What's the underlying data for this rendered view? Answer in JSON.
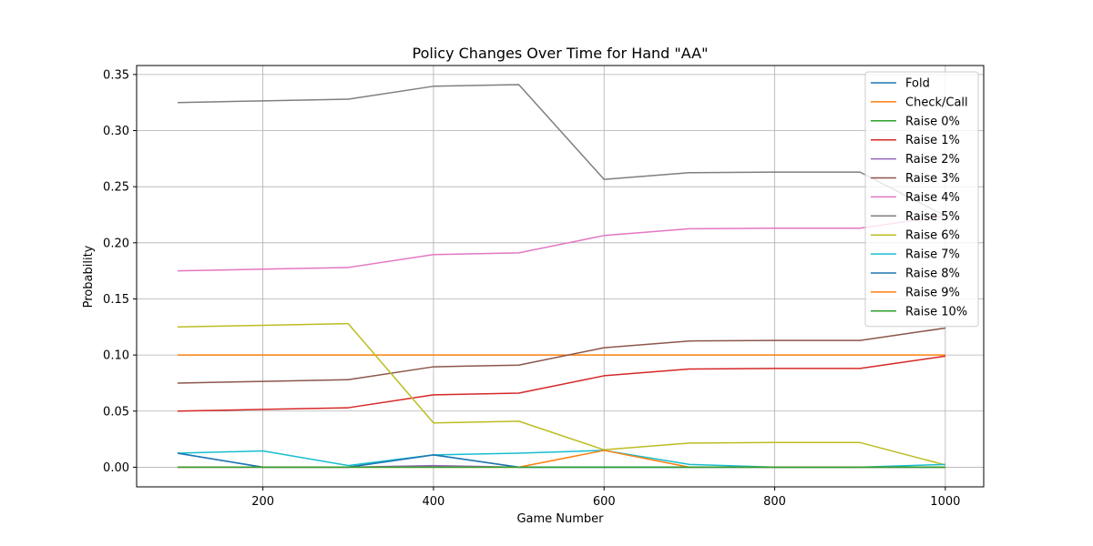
{
  "chart_data": {
    "type": "line",
    "title": "Policy Changes Over Time for Hand \"AA\"",
    "xlabel": "Game Number",
    "ylabel": "Probability",
    "xlim": [
      52,
      1045
    ],
    "ylim": [
      -0.0175,
      0.358
    ],
    "x": [
      100,
      200,
      300,
      400,
      500,
      600,
      700,
      800,
      900,
      1000
    ],
    "xticks": [
      200,
      400,
      600,
      800,
      1000
    ],
    "yticks": [
      0.0,
      0.05,
      0.1,
      0.15,
      0.2,
      0.25,
      0.3,
      0.35
    ],
    "xtick_labels": [
      "200",
      "400",
      "600",
      "800",
      "1000"
    ],
    "ytick_labels": [
      "0.00",
      "0.05",
      "0.10",
      "0.15",
      "0.20",
      "0.25",
      "0.30",
      "0.35"
    ],
    "grid": true,
    "legend_position": "top-right",
    "series": [
      {
        "name": "Fold",
        "color": "#1f77b4",
        "values": [
          0.0125,
          0.0,
          0.0,
          0.011,
          0.0,
          0.0,
          0.0,
          0.0,
          0.0,
          0.0
        ]
      },
      {
        "name": "Check/Call",
        "color": "#ff7f0e",
        "values": [
          0.1,
          0.1,
          0.1,
          0.1,
          0.1,
          0.1,
          0.1,
          0.1,
          0.1,
          0.1
        ]
      },
      {
        "name": "Raise 0%",
        "color": "#2ca02c",
        "values": [
          0.0,
          0.0,
          0.0,
          0.0,
          0.0,
          0.0,
          0.0,
          0.0,
          0.0,
          0.0
        ]
      },
      {
        "name": "Raise 1%",
        "color": "#d62728",
        "values": [
          0.05,
          0.0515,
          0.053,
          0.0645,
          0.066,
          0.0815,
          0.0875,
          0.088,
          0.088,
          0.099
        ]
      },
      {
        "name": "Raise 2%",
        "color": "#9467bd",
        "values": [
          0.0,
          0.0,
          0.0,
          0.0015,
          0.0,
          0.0,
          0.0,
          0.0,
          0.0,
          0.0
        ]
      },
      {
        "name": "Raise 3%",
        "color": "#8c564b",
        "values": [
          0.075,
          0.0765,
          0.078,
          0.0895,
          0.091,
          0.1065,
          0.1125,
          0.113,
          0.113,
          0.124
        ]
      },
      {
        "name": "Raise 4%",
        "color": "#e377c2",
        "values": [
          0.175,
          0.1765,
          0.178,
          0.1895,
          0.191,
          0.2065,
          0.2125,
          0.213,
          0.213,
          0.224
        ]
      },
      {
        "name": "Raise 5%",
        "color": "#7f7f7f",
        "values": [
          0.325,
          0.3265,
          0.328,
          0.3395,
          0.341,
          0.2565,
          0.2625,
          0.263,
          0.263,
          0.224
        ]
      },
      {
        "name": "Raise 6%",
        "color": "#bcbd22",
        "values": [
          0.125,
          0.1265,
          0.128,
          0.0395,
          0.041,
          0.0155,
          0.0215,
          0.022,
          0.022,
          0.002
        ]
      },
      {
        "name": "Raise 7%",
        "color": "#17becf",
        "values": [
          0.0125,
          0.0145,
          0.0015,
          0.011,
          0.0125,
          0.015,
          0.0025,
          0.0,
          0.0,
          0.0025
        ]
      },
      {
        "name": "Raise 8%",
        "color": "#1f77b4",
        "values": [
          0.0125,
          0.0,
          0.0,
          0.011,
          0.0,
          0.0,
          0.0,
          0.0,
          0.0,
          0.0
        ]
      },
      {
        "name": "Raise 9%",
        "color": "#ff7f0e",
        "values": [
          0.0,
          0.0,
          0.0,
          0.0,
          0.0,
          0.015,
          0.0,
          0.0,
          0.0,
          0.0
        ]
      },
      {
        "name": "Raise 10%",
        "color": "#2ca02c",
        "values": [
          0.0,
          0.0,
          0.0,
          0.0,
          0.0,
          0.0,
          0.0,
          0.0,
          0.0,
          0.0
        ]
      }
    ]
  }
}
